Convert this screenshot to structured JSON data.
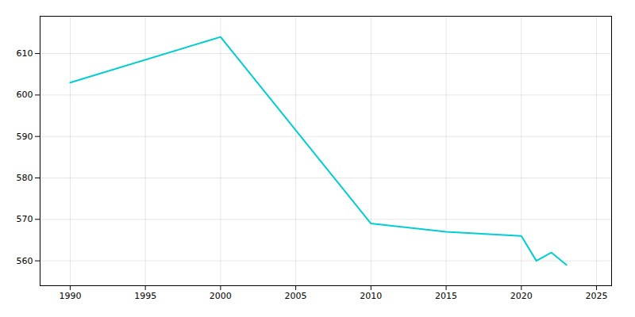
{
  "chart_data": {
    "type": "line",
    "x": [
      1990,
      2000,
      2010,
      2015,
      2020,
      2021,
      2022,
      2023
    ],
    "values": [
      603,
      614,
      569,
      567,
      566,
      560,
      562,
      559
    ],
    "color": "#00CED1",
    "xlim": [
      1988,
      2026
    ],
    "ylim": [
      554,
      619
    ],
    "xticks": [
      1990,
      1995,
      2000,
      2005,
      2010,
      2015,
      2020,
      2025
    ],
    "yticks": [
      560,
      570,
      580,
      590,
      600,
      610
    ],
    "grid": true
  }
}
